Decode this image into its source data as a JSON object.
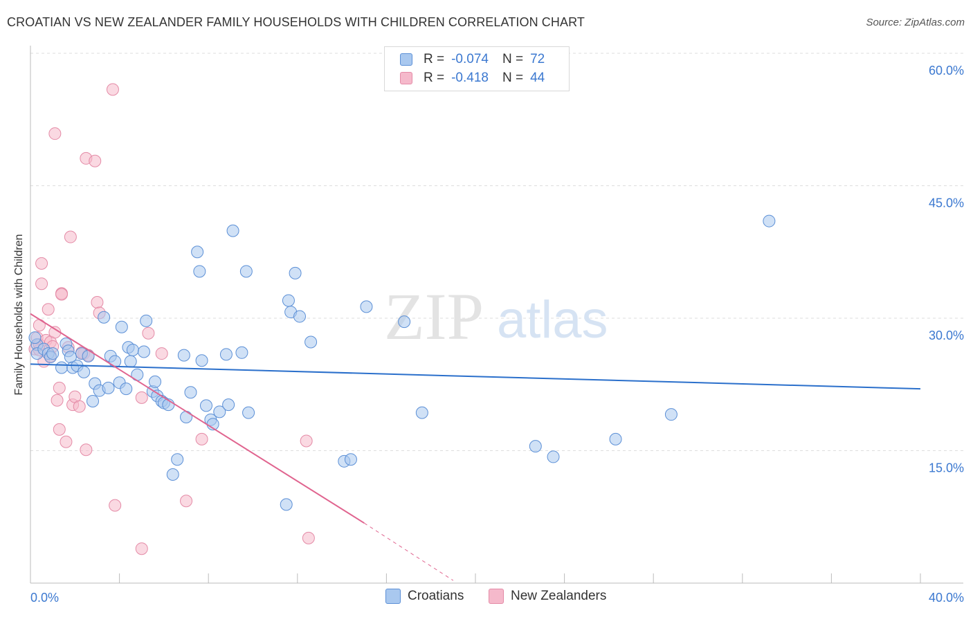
{
  "title": "CROATIAN VS NEW ZEALANDER FAMILY HOUSEHOLDS WITH CHILDREN CORRELATION CHART",
  "source": "Source: ZipAtlas.com",
  "watermark": {
    "zip": "ZIP",
    "atlas": "atlas"
  },
  "legend_top": {
    "rows": [
      {
        "r_label": "R =",
        "r_value": "-0.074",
        "n_label": "N =",
        "n_value": "72"
      },
      {
        "r_label": "R =",
        "r_value": "-0.418",
        "n_label": "N =",
        "n_value": "44"
      }
    ]
  },
  "legend_bottom": {
    "series1": "Croatians",
    "series2": "New Zealanders"
  },
  "colors": {
    "blue_fill": "#a9c8ef",
    "blue_stroke": "#5b8fd6",
    "blue_line": "#2a6fcb",
    "pink_fill": "#f5b9cb",
    "pink_stroke": "#e48aa6",
    "pink_line": "#e0648f",
    "axis_text": "#3b78d0",
    "grid": "#dddddd"
  },
  "chart_data": {
    "type": "scatter",
    "title": "CROATIAN VS NEW ZEALANDER FAMILY HOUSEHOLDS WITH CHILDREN CORRELATION CHART",
    "xlabel": "",
    "ylabel": "Family Households with Children",
    "xlim": [
      0,
      40
    ],
    "ylim": [
      0,
      60
    ],
    "x_tick_labels": [
      "0.0%",
      "40.0%"
    ],
    "y_ticks": [
      15,
      30,
      45,
      60
    ],
    "y_tick_labels": [
      "15.0%",
      "30.0%",
      "45.0%",
      "60.0%"
    ],
    "series": [
      {
        "name": "Croatians",
        "r": -0.074,
        "n": 72,
        "trend": {
          "x0": 0,
          "y0": 24.8,
          "x1": 40,
          "y1": 22.0
        },
        "points": [
          [
            0.3,
            27.0
          ],
          [
            0.3,
            26.0
          ],
          [
            0.6,
            26.5
          ],
          [
            0.8,
            26.0
          ],
          [
            0.9,
            25.6
          ],
          [
            1.4,
            24.4
          ],
          [
            1.6,
            27.1
          ],
          [
            1.7,
            26.3
          ],
          [
            1.8,
            25.6
          ],
          [
            1.9,
            24.4
          ],
          [
            2.1,
            24.6
          ],
          [
            2.3,
            26.0
          ],
          [
            2.4,
            23.9
          ],
          [
            2.6,
            25.7
          ],
          [
            2.8,
            20.6
          ],
          [
            2.9,
            22.6
          ],
          [
            3.1,
            21.8
          ],
          [
            3.3,
            30.1
          ],
          [
            3.5,
            22.1
          ],
          [
            3.6,
            25.7
          ],
          [
            3.8,
            25.1
          ],
          [
            4.0,
            22.7
          ],
          [
            4.1,
            29.0
          ],
          [
            4.3,
            22.0
          ],
          [
            4.4,
            26.7
          ],
          [
            4.5,
            25.1
          ],
          [
            4.6,
            26.4
          ],
          [
            4.8,
            23.6
          ],
          [
            5.1,
            26.2
          ],
          [
            5.2,
            29.7
          ],
          [
            5.5,
            21.7
          ],
          [
            5.6,
            22.8
          ],
          [
            5.7,
            21.2
          ],
          [
            5.9,
            20.6
          ],
          [
            6.0,
            20.4
          ],
          [
            6.2,
            20.2
          ],
          [
            6.4,
            12.3
          ],
          [
            6.6,
            14.0
          ],
          [
            6.9,
            25.8
          ],
          [
            7.0,
            18.8
          ],
          [
            7.2,
            21.6
          ],
          [
            7.5,
            37.5
          ],
          [
            7.6,
            35.3
          ],
          [
            7.7,
            25.2
          ],
          [
            7.9,
            20.1
          ],
          [
            8.1,
            18.5
          ],
          [
            8.2,
            18.0
          ],
          [
            8.5,
            19.4
          ],
          [
            8.8,
            25.9
          ],
          [
            8.9,
            20.2
          ],
          [
            9.1,
            39.9
          ],
          [
            9.5,
            26.1
          ],
          [
            9.7,
            35.3
          ],
          [
            9.8,
            19.3
          ],
          [
            11.5,
            8.9
          ],
          [
            11.6,
            32.0
          ],
          [
            11.7,
            30.7
          ],
          [
            11.9,
            35.1
          ],
          [
            12.1,
            30.2
          ],
          [
            12.6,
            27.3
          ],
          [
            14.1,
            13.8
          ],
          [
            14.4,
            14.0
          ],
          [
            15.1,
            31.3
          ],
          [
            16.8,
            29.6
          ],
          [
            17.6,
            19.3
          ],
          [
            22.7,
            15.5
          ],
          [
            23.5,
            14.3
          ],
          [
            26.3,
            16.3
          ],
          [
            28.8,
            19.1
          ],
          [
            33.2,
            41.0
          ],
          [
            0.2,
            27.8
          ],
          [
            1.0,
            26.0
          ]
        ]
      },
      {
        "name": "New Zealanders",
        "r": -0.418,
        "n": 44,
        "trend": {
          "x0": 0,
          "y0": 30.5,
          "x1": 15.0,
          "y1": 6.8,
          "dash_x1": 19.0,
          "dash_y1": 0.3
        },
        "points": [
          [
            0.2,
            26.5
          ],
          [
            0.3,
            27.8
          ],
          [
            0.4,
            26.4
          ],
          [
            0.4,
            27.0
          ],
          [
            0.4,
            29.2
          ],
          [
            0.5,
            36.2
          ],
          [
            0.5,
            33.9
          ],
          [
            0.6,
            25.1
          ],
          [
            0.7,
            27.5
          ],
          [
            0.8,
            31.0
          ],
          [
            0.9,
            27.3
          ],
          [
            0.9,
            25.7
          ],
          [
            1.0,
            26.8
          ],
          [
            1.1,
            28.4
          ],
          [
            1.1,
            50.9
          ],
          [
            1.2,
            20.7
          ],
          [
            1.3,
            22.1
          ],
          [
            1.3,
            17.4
          ],
          [
            1.4,
            32.8
          ],
          [
            1.4,
            32.7
          ],
          [
            1.6,
            16.0
          ],
          [
            1.8,
            39.2
          ],
          [
            1.9,
            20.2
          ],
          [
            2.0,
            21.1
          ],
          [
            2.2,
            20.0
          ],
          [
            2.4,
            26.0
          ],
          [
            2.5,
            48.1
          ],
          [
            2.5,
            15.1
          ],
          [
            2.6,
            25.8
          ],
          [
            2.9,
            47.8
          ],
          [
            3.0,
            31.8
          ],
          [
            3.1,
            30.6
          ],
          [
            3.7,
            55.9
          ],
          [
            3.8,
            8.8
          ],
          [
            5.0,
            21.0
          ],
          [
            5.0,
            3.9
          ],
          [
            5.3,
            28.3
          ],
          [
            5.9,
            26.0
          ],
          [
            7.0,
            9.3
          ],
          [
            7.7,
            16.3
          ],
          [
            12.4,
            16.1
          ],
          [
            12.5,
            5.1
          ],
          [
            1.7,
            26.7
          ],
          [
            2.3,
            26.1
          ]
        ]
      }
    ]
  }
}
